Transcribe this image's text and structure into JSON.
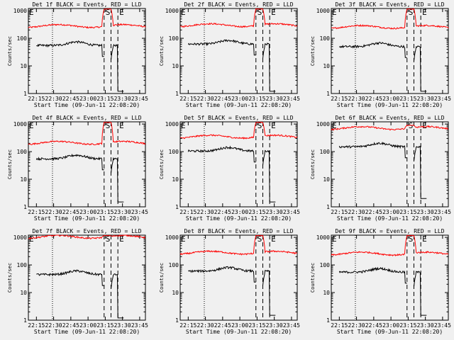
{
  "chart_data": {
    "type": "line",
    "scale": "log",
    "ylabel": "Counts/sec",
    "xlabel": "Start Time (09-Jun-11 22:08:20)",
    "x_ticks": [
      "22:15",
      "22:30",
      "22:45",
      "23:00",
      "23:15",
      "23:30",
      "23:45"
    ],
    "x_tick_minutes": [
      15,
      30,
      45,
      60,
      75,
      90,
      105
    ],
    "x_range_minutes": [
      8,
      110
    ],
    "y_ticks": [
      "1",
      "10",
      "100",
      "1000"
    ],
    "y_tick_values": [
      1,
      10,
      100,
      1000
    ],
    "ylim": [
      1,
      1200
    ],
    "marker_labels": {
      "e": "E",
      "s": "S"
    },
    "markers_minutes": {
      "dotted": 29,
      "dashed": [
        74,
        80,
        86
      ]
    },
    "series_colors": {
      "events": "#000000",
      "lld": "#ff0000"
    },
    "panels": [
      {
        "title": "Det 1f BLACK = Events, RED = LLD",
        "lld_base": 280,
        "events_base": 55,
        "lld_peak": 1150,
        "events_drop": 1.2
      },
      {
        "title": "Det 2f BLACK = Events, RED = LLD",
        "lld_base": 300,
        "events_base": 62,
        "lld_peak": 1150,
        "events_drop": 1.2
      },
      {
        "title": "Det 3f BLACK = Events, RED = LLD",
        "lld_base": 260,
        "events_base": 50,
        "lld_peak": 1150,
        "events_drop": 1.2
      },
      {
        "title": "Det 4f BLACK = Events, RED = LLD",
        "lld_base": 210,
        "events_base": 55,
        "lld_peak": 1150,
        "events_drop": 1.5
      },
      {
        "title": "Det 5f BLACK = Events, RED = LLD",
        "lld_base": 350,
        "events_base": 105,
        "lld_peak": 1150,
        "events_drop": 1.5
      },
      {
        "title": "Det 6f BLACK = Events, RED = LLD",
        "lld_base": 720,
        "events_base": 150,
        "lld_peak": 900,
        "events_drop": 2.0
      },
      {
        "title": "Det 7f BLACK = Events, RED = LLD",
        "lld_base": 1050,
        "events_base": 45,
        "lld_peak": 1150,
        "events_drop": 1.2
      },
      {
        "title": "Det 8f BLACK = Events, RED = LLD",
        "lld_base": 280,
        "events_base": 60,
        "lld_peak": 1150,
        "events_drop": 1.5
      },
      {
        "title": "Det 9f BLACK = Events, RED = LLD",
        "lld_base": 260,
        "events_base": 55,
        "lld_peak": 1150,
        "events_drop": 1.5
      }
    ]
  }
}
